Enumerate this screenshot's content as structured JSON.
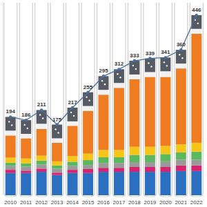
{
  "chart_data": {
    "type": "bar",
    "stacked": true,
    "data_labels": true,
    "tick_labels": "x",
    "grid": false,
    "categories": [
      "2010",
      "2011",
      "2012",
      "2013",
      "2014",
      "2015",
      "2016",
      "2017",
      "2018",
      "2019",
      "2020",
      "2021",
      "2022"
    ],
    "ylim": [
      0,
      480
    ],
    "series": [
      {
        "color": "#2a6fc0",
        "values": [
          55,
          55,
          58,
          50,
          55,
          55,
          58,
          58,
          58,
          58,
          58,
          60,
          60
        ]
      },
      {
        "color": "#d6246e",
        "values": [
          8,
          6,
          8,
          6,
          8,
          10,
          10,
          10,
          12,
          12,
          12,
          14,
          14
        ]
      },
      {
        "color": "#9a9a9a",
        "values": [
          10,
          10,
          10,
          10,
          10,
          10,
          12,
          12,
          12,
          12,
          14,
          14,
          14
        ]
      },
      {
        "color": "#5cb85c",
        "values": [
          8,
          8,
          10,
          8,
          10,
          12,
          14,
          14,
          18,
          18,
          18,
          18,
          20
        ]
      },
      {
        "color": "#f5c518",
        "values": [
          12,
          12,
          12,
          10,
          14,
          16,
          18,
          18,
          20,
          20,
          20,
          20,
          22
        ]
      },
      {
        "color": "#f07c22",
        "values": [
          55,
          50,
          66,
          46,
          75,
          106,
          137,
          154,
          167,
          173,
          171,
          188,
          270
        ]
      },
      {
        "color": "#f2f2f2",
        "values": [
          12,
          11,
          13,
          11,
          11,
          12,
          12,
          12,
          12,
          12,
          14,
          12,
          12
        ]
      },
      {
        "color": "#555a63",
        "values": [
          34,
          34,
          34,
          34,
          34,
          34,
          34,
          34,
          34,
          34,
          34,
          34,
          34
        ]
      },
      {
        "type": "line",
        "color": "#4a6f9c",
        "marker": "circle",
        "line_style": "solid",
        "values": [
          194,
          186,
          211,
          175,
          217,
          255,
          295,
          312,
          333,
          339,
          341,
          360,
          446
        ]
      }
    ]
  }
}
